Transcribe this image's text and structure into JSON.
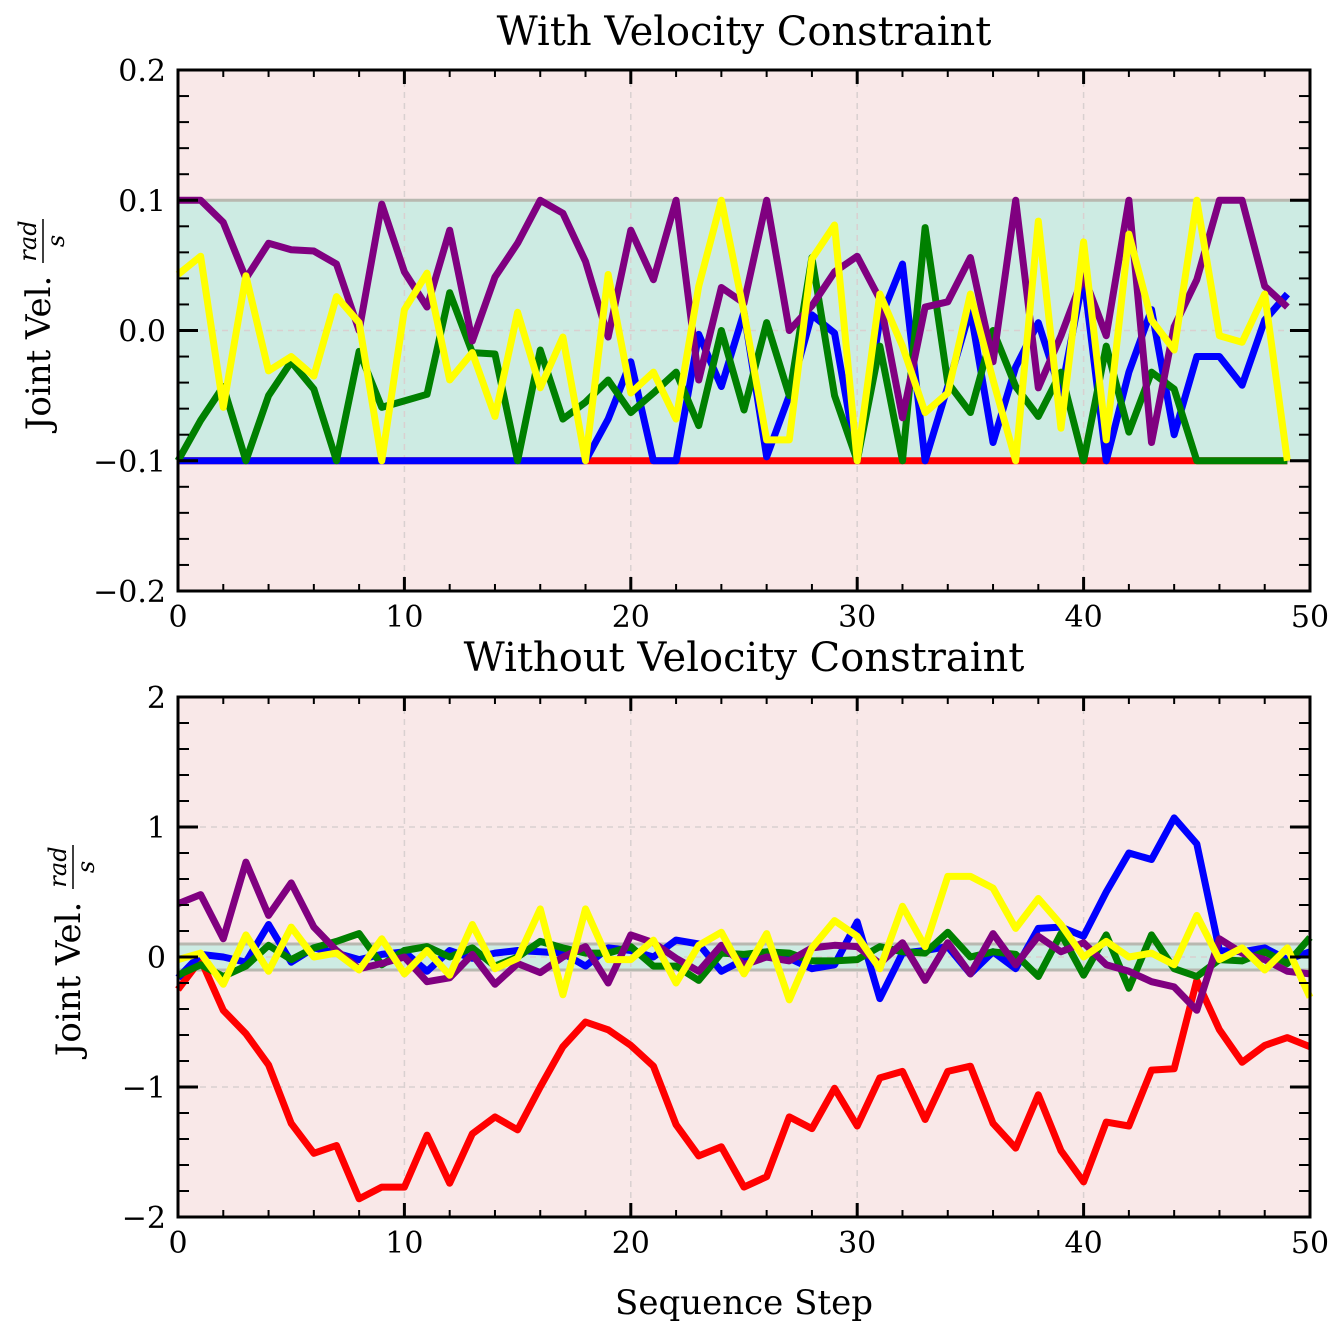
{
  "colors": {
    "red": "#ff0000",
    "blue": "#0000ff",
    "green": "#008000",
    "purple": "#800080",
    "yellow": "#ffff00",
    "allowed_band": "#cdebe3",
    "outside_region": "#f9e8e8",
    "limit_line": "#b8b8b0"
  },
  "chart_data": [
    {
      "type": "line",
      "title": "With Velocity Constraint",
      "xlabel": "",
      "ylabel": "Joint Vel.",
      "ylabel_unit_numerator": "rad",
      "ylabel_unit_denominator": "s",
      "xlim": [
        0,
        50
      ],
      "ylim": [
        -0.2,
        0.2
      ],
      "xticks": [
        "0",
        "10",
        "20",
        "30",
        "40",
        "50"
      ],
      "yticks": [
        "0.2",
        "0.1",
        "0.0",
        "−0.1",
        "−0.2"
      ],
      "ytick_values": [
        0.2,
        0.1,
        0.0,
        -0.1,
        -0.2
      ],
      "xtick_values": [
        0,
        10,
        20,
        30,
        40,
        50
      ],
      "grid": true,
      "band": [
        -0.1,
        0.1
      ],
      "series": [
        {
          "color": "red",
          "values": [
            -0.1,
            -0.1,
            -0.1,
            -0.1,
            -0.1,
            -0.1,
            -0.1,
            -0.1,
            -0.1,
            -0.1,
            -0.1,
            -0.1,
            -0.1,
            -0.1,
            -0.1,
            -0.1,
            -0.1,
            -0.1,
            -0.1,
            -0.1,
            -0.1,
            -0.1,
            -0.1,
            -0.1,
            -0.1,
            -0.1,
            -0.1,
            -0.1,
            -0.1,
            -0.1,
            -0.1,
            -0.1,
            -0.1,
            -0.1,
            -0.1,
            -0.1,
            -0.1,
            -0.1,
            -0.1,
            -0.1,
            -0.1,
            -0.1,
            -0.1,
            -0.1,
            -0.1,
            -0.1,
            -0.1,
            -0.1,
            -0.1,
            -0.1
          ]
        },
        {
          "color": "blue",
          "values": [
            -0.1,
            -0.1,
            -0.1,
            -0.1,
            -0.1,
            -0.1,
            -0.1,
            -0.1,
            -0.1,
            -0.1,
            -0.1,
            -0.1,
            -0.1,
            -0.1,
            -0.1,
            -0.1,
            -0.1,
            -0.1,
            -0.1,
            -0.068,
            -0.024,
            -0.1,
            -0.1,
            -0.003,
            -0.043,
            0.014,
            -0.097,
            -0.05,
            0.012,
            -0.002,
            -0.1,
            0.008,
            0.051,
            -0.1,
            -0.043,
            0.016,
            -0.086,
            -0.028,
            0.006,
            -0.048,
            0.042,
            -0.1,
            -0.032,
            0.016,
            -0.08,
            -0.02,
            -0.02,
            -0.042,
            0.008,
            0.028
          ]
        },
        {
          "color": "green",
          "values": [
            -0.1,
            -0.069,
            -0.043,
            -0.1,
            -0.05,
            -0.024,
            -0.045,
            -0.1,
            -0.016,
            -0.059,
            -0.054,
            -0.049,
            0.029,
            -0.017,
            -0.018,
            -0.1,
            -0.015,
            -0.068,
            -0.055,
            -0.038,
            -0.063,
            -0.048,
            -0.032,
            -0.073,
            0.0,
            -0.061,
            0.006,
            -0.05,
            0.056,
            -0.05,
            -0.1,
            -0.012,
            -0.1,
            0.079,
            -0.04,
            -0.063,
            0.0,
            -0.043,
            -0.066,
            -0.032,
            -0.1,
            -0.012,
            -0.078,
            -0.032,
            -0.045,
            -0.1,
            -0.1,
            -0.1,
            -0.1,
            -0.1
          ]
        },
        {
          "color": "purple",
          "values": [
            0.1,
            0.1,
            0.083,
            0.04,
            0.067,
            0.062,
            0.061,
            0.051,
            0.0,
            0.097,
            0.045,
            0.018,
            0.077,
            -0.008,
            0.041,
            0.067,
            0.1,
            0.09,
            0.053,
            -0.005,
            0.077,
            0.039,
            0.1,
            -0.038,
            0.033,
            0.021,
            0.1,
            0.0,
            0.019,
            0.045,
            0.057,
            0.024,
            -0.067,
            0.018,
            0.022,
            0.056,
            -0.024,
            0.1,
            -0.044,
            -0.004,
            0.042,
            -0.004,
            0.1,
            -0.086,
            0.003,
            0.039,
            0.1,
            0.1,
            0.034,
            0.018
          ]
        },
        {
          "color": "yellow",
          "values": [
            0.043,
            0.057,
            -0.059,
            0.042,
            -0.031,
            -0.02,
            -0.035,
            0.026,
            0.006,
            -0.1,
            0.016,
            0.044,
            -0.038,
            -0.017,
            -0.066,
            0.014,
            -0.044,
            -0.005,
            -0.1,
            0.043,
            -0.048,
            -0.032,
            -0.068,
            0.034,
            0.1,
            0.014,
            -0.084,
            -0.084,
            0.055,
            0.081,
            -0.1,
            0.028,
            -0.012,
            -0.063,
            -0.048,
            0.028,
            -0.038,
            -0.1,
            0.084,
            -0.075,
            0.068,
            -0.084,
            0.074,
            0.008,
            -0.015,
            0.1,
            -0.004,
            -0.009,
            0.028,
            -0.1
          ]
        }
      ]
    },
    {
      "type": "line",
      "title": "Without Velocity Constraint",
      "xlabel": "Sequence Step",
      "ylabel": "Joint Vel.",
      "ylabel_unit_numerator": "rad",
      "ylabel_unit_denominator": "s",
      "xlim": [
        0,
        50
      ],
      "ylim": [
        -2,
        2
      ],
      "xticks": [
        "0",
        "10",
        "20",
        "30",
        "40",
        "50"
      ],
      "yticks": [
        "2",
        "1",
        "0",
        "−1",
        "−2"
      ],
      "ytick_values": [
        2,
        1,
        0,
        -1,
        -2
      ],
      "xtick_values": [
        0,
        10,
        20,
        30,
        40,
        50
      ],
      "grid": true,
      "band": [
        -0.1,
        0.1
      ],
      "series": [
        {
          "color": "red",
          "values": [
            -0.25,
            -0.02,
            -0.41,
            -0.59,
            -0.83,
            -1.28,
            -1.51,
            -1.45,
            -1.86,
            -1.77,
            -1.77,
            -1.37,
            -1.74,
            -1.36,
            -1.23,
            -1.33,
            -1.0,
            -0.69,
            -0.5,
            -0.56,
            -0.68,
            -0.84,
            -1.29,
            -1.53,
            -1.46,
            -1.77,
            -1.69,
            -1.23,
            -1.32,
            -1.01,
            -1.3,
            -0.93,
            -0.88,
            -1.25,
            -0.88,
            -0.84,
            -1.28,
            -1.47,
            -1.06,
            -1.49,
            -1.73,
            -1.27,
            -1.3,
            -0.87,
            -0.86,
            -0.18,
            -0.56,
            -0.81,
            -0.68,
            -0.62,
            -0.69
          ]
        },
        {
          "color": "blue",
          "values": [
            -0.16,
            0.02,
            0.0,
            -0.04,
            0.25,
            -0.04,
            0.07,
            0.03,
            -0.02,
            0.02,
            0.04,
            -0.11,
            0.05,
            -0.01,
            0.03,
            0.05,
            0.04,
            0.03,
            -0.07,
            0.07,
            0.05,
            0.0,
            0.13,
            0.1,
            -0.11,
            -0.02,
            0.0,
            -0.01,
            -0.09,
            -0.06,
            0.27,
            -0.32,
            0.03,
            0.05,
            0.08,
            -0.13,
            0.04,
            -0.09,
            0.22,
            0.23,
            0.16,
            0.5,
            0.8,
            0.75,
            1.07,
            0.87,
            0.05,
            0.04,
            0.07,
            -0.02,
            0.04
          ]
        },
        {
          "color": "green",
          "values": [
            -0.14,
            -0.06,
            -0.15,
            -0.07,
            0.09,
            -0.02,
            0.07,
            0.12,
            0.18,
            -0.06,
            0.05,
            0.08,
            0.0,
            0.07,
            -0.07,
            0.0,
            0.12,
            0.07,
            0.03,
            0.03,
            0.08,
            -0.07,
            -0.07,
            -0.18,
            0.03,
            0.02,
            0.04,
            0.03,
            -0.03,
            -0.03,
            -0.02,
            0.08,
            0.04,
            0.03,
            0.19,
            0.0,
            0.04,
            0.02,
            -0.15,
            0.18,
            -0.14,
            0.17,
            -0.24,
            0.17,
            -0.09,
            -0.15,
            -0.02,
            -0.03,
            0.04,
            -0.05,
            0.15
          ]
        },
        {
          "color": "purple",
          "values": [
            0.41,
            0.48,
            0.14,
            0.73,
            0.32,
            0.57,
            0.23,
            0.05,
            -0.09,
            -0.05,
            0.0,
            -0.19,
            -0.16,
            0.02,
            -0.21,
            -0.05,
            -0.12,
            0.0,
            0.08,
            -0.2,
            0.17,
            0.11,
            -0.01,
            -0.11,
            0.09,
            -0.06,
            0.0,
            -0.03,
            0.07,
            0.09,
            0.08,
            -0.05,
            0.11,
            -0.18,
            0.11,
            -0.13,
            0.18,
            -0.06,
            0.16,
            0.04,
            0.11,
            -0.06,
            -0.11,
            -0.19,
            -0.23,
            -0.41,
            0.14,
            0.03,
            -0.02,
            -0.11,
            -0.13
          ]
        },
        {
          "color": "yellow",
          "values": [
            -0.02,
            0.03,
            -0.21,
            0.17,
            -0.11,
            0.23,
            0.0,
            0.03,
            -0.1,
            0.14,
            -0.13,
            0.05,
            -0.14,
            0.25,
            -0.09,
            -0.01,
            0.37,
            -0.29,
            0.37,
            -0.02,
            -0.02,
            0.13,
            -0.2,
            0.09,
            0.19,
            -0.13,
            0.18,
            -0.33,
            0.07,
            0.28,
            0.16,
            -0.09,
            0.39,
            0.08,
            0.62,
            0.62,
            0.53,
            0.22,
            0.45,
            0.25,
            0.0,
            0.12,
            0.0,
            0.03,
            -0.06,
            0.32,
            -0.02,
            0.07,
            -0.1,
            0.07,
            -0.31
          ]
        }
      ]
    }
  ]
}
